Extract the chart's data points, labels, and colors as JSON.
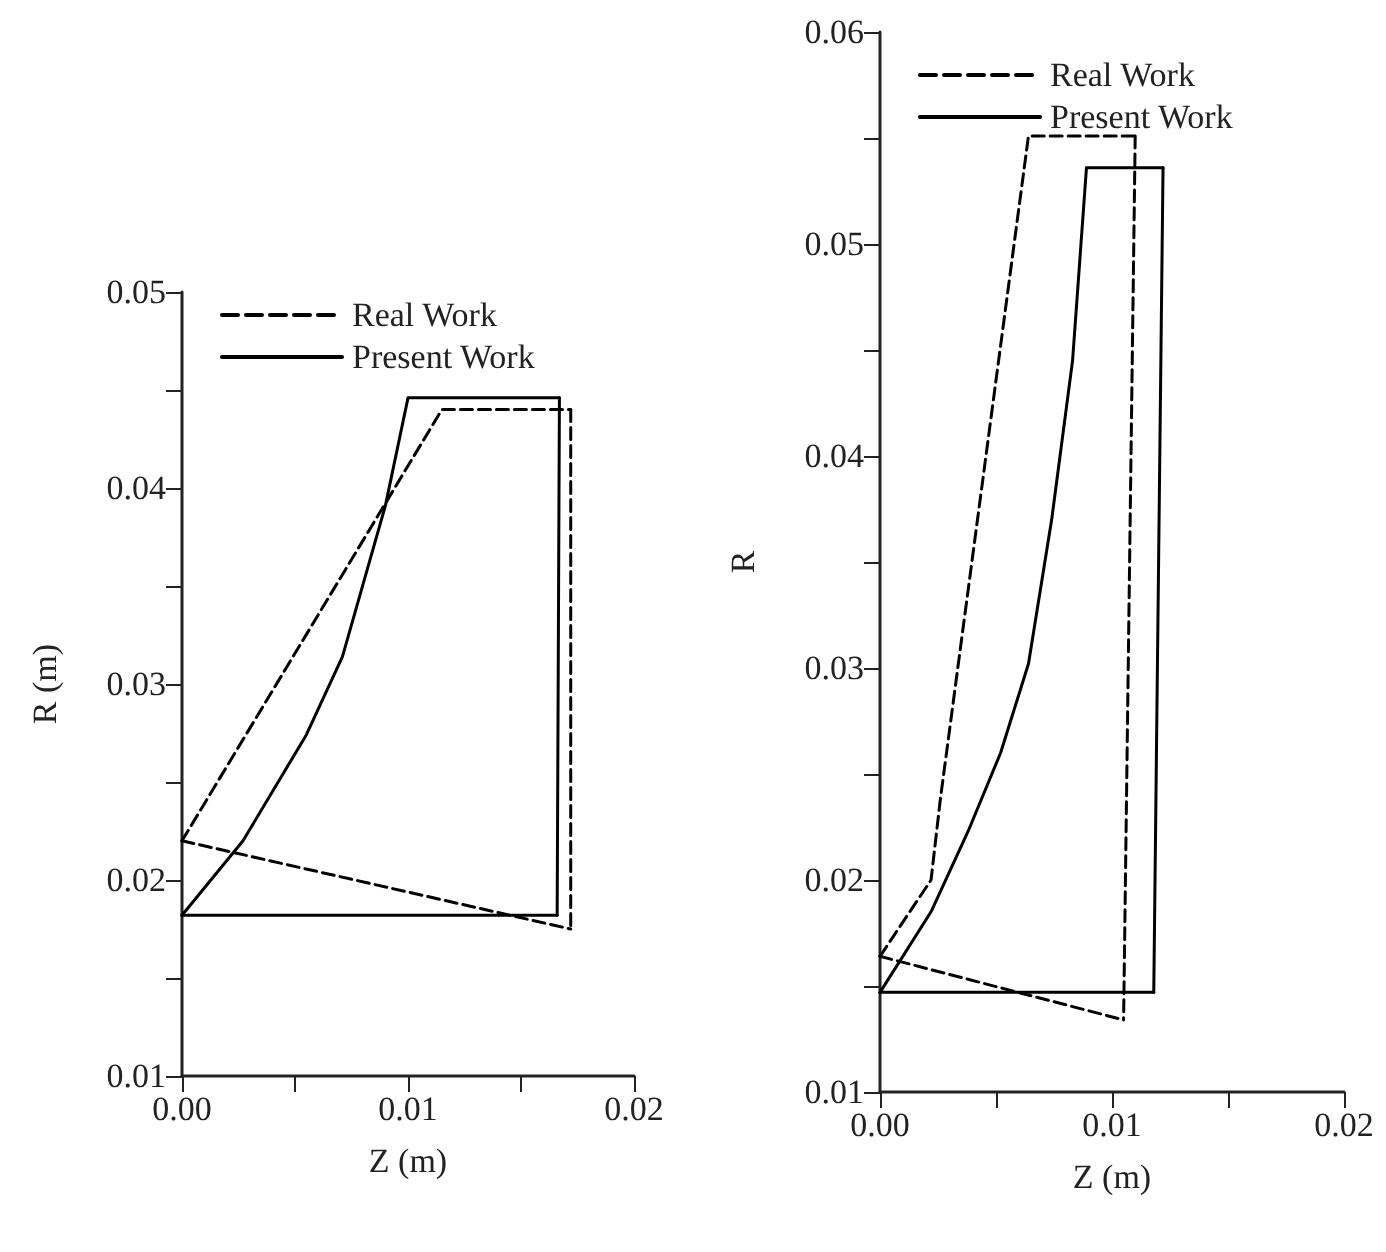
{
  "chart_data": [
    {
      "type": "line",
      "xlabel": "Z (m)",
      "ylabel": "R (m)",
      "xlim": [
        0,
        0.02
      ],
      "ylim": [
        0.01,
        0.05
      ],
      "xticks": [
        {
          "value": 0,
          "label": "0.00"
        },
        {
          "value": 0.005,
          "label": null
        },
        {
          "value": 0.01,
          "label": "0.01"
        },
        {
          "value": 0.015,
          "label": null
        },
        {
          "value": 0.02,
          "label": "0.02"
        }
      ],
      "yticks": [
        0.01,
        {
          "value": 0.015,
          "label": null
        },
        0.02,
        {
          "value": 0.025,
          "label": null
        },
        0.03,
        {
          "value": 0.035,
          "label": null
        },
        0.04,
        {
          "value": 0.045,
          "label": null
        },
        0.05
      ],
      "grid": false,
      "legend": "top left",
      "marker": "none",
      "series": [
        {
          "name": "Real Work",
          "color": "#000000",
          "line_style": "dashed",
          "x": [
            0,
            0.0115,
            0.0172
          ],
          "values": [
            0.022,
            0.044,
            0.044
          ]
        },
        {
          "color": "#000000",
          "line_style": "dashed",
          "x": [
            0.0172,
            0.0172
          ],
          "values": [
            0.044,
            0.0175
          ]
        },
        {
          "color": "#000000",
          "line_style": "dashed",
          "x": [
            0,
            0.0172
          ],
          "values": [
            0.022,
            0.0175
          ]
        },
        {
          "name": "Present Work",
          "color": "#000000",
          "line_style": "solid",
          "x": [
            0,
            0.0027,
            0.0055,
            0.0071,
            0.009,
            0.01,
            0.0167
          ],
          "values": [
            0.0182,
            0.022,
            0.0274,
            0.0314,
            0.0391,
            0.0446,
            0.0446
          ]
        },
        {
          "color": "#000000",
          "line_style": "solid",
          "x": [
            0.0167,
            0.0166
          ],
          "values": [
            0.0446,
            0.0182
          ]
        },
        {
          "color": "#000000",
          "line_style": "solid",
          "x": [
            0,
            0.0166
          ],
          "values": [
            0.0182,
            0.0182
          ]
        }
      ]
    },
    {
      "type": "line",
      "xlabel": "Z (m)",
      "ylabel": "R",
      "xlim": [
        0,
        0.02
      ],
      "ylim": [
        0.01,
        0.06
      ],
      "xticks": [
        {
          "value": 0,
          "label": "0.00"
        },
        {
          "value": 0.005,
          "label": null
        },
        {
          "value": 0.01,
          "label": "0.01"
        },
        {
          "value": 0.015,
          "label": null
        },
        {
          "value": 0.02,
          "label": "0.02"
        }
      ],
      "yticks": [
        0.01,
        {
          "value": 0.015,
          "label": null
        },
        0.02,
        {
          "value": 0.025,
          "label": null
        },
        0.03,
        {
          "value": 0.035,
          "label": null
        },
        0.04,
        {
          "value": 0.045,
          "label": null
        },
        0.05,
        {
          "value": 0.055,
          "label": null
        },
        0.06
      ],
      "grid": false,
      "legend": "top left",
      "marker": "none",
      "series": [
        {
          "name": "Real Work",
          "color": "#000000",
          "line_style": "dashed",
          "x": [
            0,
            0.0022,
            0.0026,
            0.0064,
            0.011
          ],
          "values": [
            0.0164,
            0.02,
            0.0238,
            0.0551,
            0.0551
          ]
        },
        {
          "color": "#000000",
          "line_style": "dashed",
          "x": [
            0.011,
            0.0105
          ],
          "values": [
            0.0551,
            0.0134
          ]
        },
        {
          "color": "#000000",
          "line_style": "dashed",
          "x": [
            0,
            0.0105
          ],
          "values": [
            0.0164,
            0.0134
          ]
        },
        {
          "name": "Present Work",
          "color": "#000000",
          "line_style": "solid",
          "x": [
            0,
            0.0022,
            0.0038,
            0.0052,
            0.0064,
            0.0074,
            0.0083,
            0.0089,
            0.0122
          ],
          "values": [
            0.0147,
            0.0185,
            0.0223,
            0.026,
            0.0302,
            0.037,
            0.0445,
            0.0536,
            0.0536
          ]
        },
        {
          "color": "#000000",
          "line_style": "solid",
          "x": [
            0.0122,
            0.0118
          ],
          "values": [
            0.0536,
            0.0147
          ]
        },
        {
          "color": "#000000",
          "line_style": "solid",
          "x": [
            0,
            0.0118
          ],
          "values": [
            0.0147,
            0.0147
          ]
        }
      ]
    }
  ]
}
